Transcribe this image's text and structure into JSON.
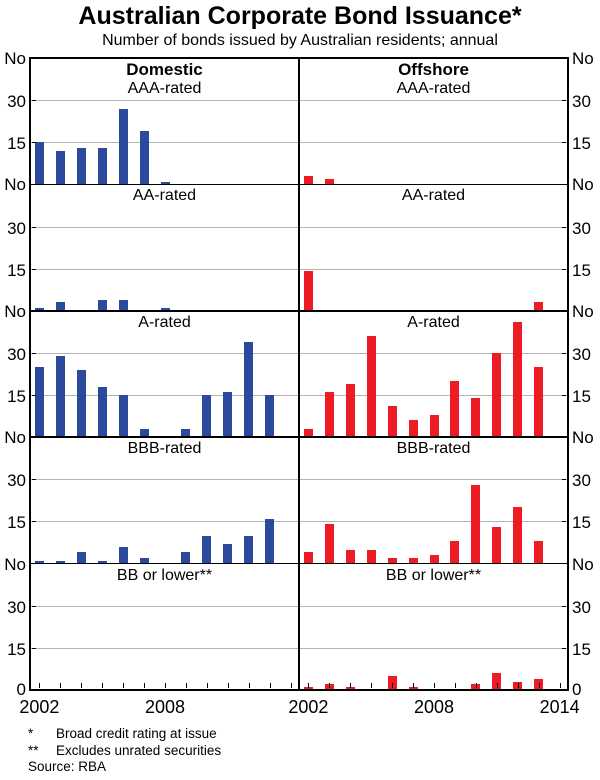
{
  "chart_data": {
    "type": "bar",
    "title": "Australian Corporate Bond Issuance*",
    "subtitle": "Number of bonds issued by Australian residents; annual",
    "unit_label": "No",
    "zero_label": "0",
    "ylim": [
      0,
      45
    ],
    "gridlines": [
      15,
      30
    ],
    "grid_on": true,
    "x_range": [
      2001.55,
      2014.4
    ],
    "years": [
      2002,
      2003,
      2004,
      2005,
      2006,
      2007,
      2008,
      2009,
      2010,
      2011,
      2012,
      2013
    ],
    "x_tick_years": [
      2002,
      2003,
      2004,
      2005,
      2006,
      2007,
      2008,
      2009,
      2010,
      2011,
      2012,
      2013,
      2014
    ],
    "columns": [
      {
        "key": "domestic",
        "label": "Domestic",
        "color": "#2b4a9e",
        "x_labels": [
          2002,
          2008
        ]
      },
      {
        "key": "offshore",
        "label": "Offshore",
        "color": "#ed1c24",
        "x_labels": [
          2002,
          2008,
          2014
        ]
      }
    ],
    "panels": [
      {
        "rating": "AAA-rated",
        "values": {
          "domestic": [
            15,
            12,
            13,
            13,
            27,
            19,
            1,
            0,
            0,
            0,
            0,
            0
          ],
          "offshore": [
            3,
            2,
            0,
            0,
            0,
            0,
            0,
            0,
            0,
            0,
            0,
            0
          ]
        }
      },
      {
        "rating": "AA-rated",
        "values": {
          "domestic": [
            1,
            3,
            0,
            4,
            4,
            0,
            1,
            0,
            0,
            0,
            0,
            0
          ],
          "offshore": [
            14,
            0,
            0,
            0,
            0,
            0,
            0,
            0,
            0,
            0,
            0,
            3
          ]
        }
      },
      {
        "rating": "A-rated",
        "values": {
          "domestic": [
            25,
            29,
            24,
            18,
            15,
            3,
            0,
            3,
            15,
            16,
            34,
            15
          ],
          "offshore": [
            3,
            16,
            19,
            36,
            11,
            6,
            8,
            20,
            14,
            30,
            41,
            25
          ]
        }
      },
      {
        "rating": "BBB-rated",
        "values": {
          "domestic": [
            1,
            1,
            4,
            1,
            6,
            2,
            0,
            4,
            10,
            7,
            10,
            16
          ],
          "offshore": [
            4,
            14,
            5,
            5,
            2,
            2,
            3,
            8,
            28,
            13,
            20,
            8
          ]
        }
      },
      {
        "rating": "BB or lower**",
        "values": {
          "domestic": [
            0,
            0,
            0,
            0,
            0,
            0,
            0,
            0,
            0,
            0,
            0,
            0
          ],
          "offshore": [
            1,
            2,
            1,
            0,
            5,
            1,
            0,
            0,
            2,
            6,
            3,
            4
          ]
        }
      }
    ],
    "footnotes": [
      {
        "marker": "*",
        "text": "Broad credit rating at issue"
      },
      {
        "marker": "**",
        "text": "Excludes unrated securities"
      }
    ],
    "source": "Source: RBA"
  }
}
